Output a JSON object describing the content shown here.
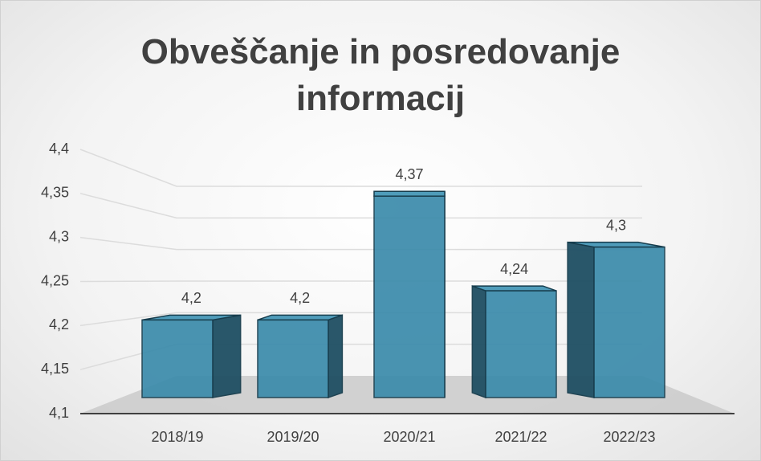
{
  "chart_data": {
    "type": "bar3d",
    "title": "Obveščanje in posredovanje informacij",
    "categories": [
      "2018/19",
      "2019/20",
      "2020/21",
      "2021/22",
      "2022/23"
    ],
    "values": [
      4.2,
      4.2,
      4.37,
      4.24,
      4.3
    ],
    "value_labels": [
      "4,2",
      "4,2",
      "4,37",
      "4,24",
      "4,3"
    ],
    "color": "#3b8bab",
    "ylim": [
      4.1,
      4.4
    ],
    "yticks": [
      {
        "value": 4.1,
        "label": "4,1"
      },
      {
        "value": 4.15,
        "label": "4,15"
      },
      {
        "value": 4.2,
        "label": "4,2"
      },
      {
        "value": 4.25,
        "label": "4,25"
      },
      {
        "value": 4.3,
        "label": "4,3"
      },
      {
        "value": 4.35,
        "label": "4,35"
      },
      {
        "value": 4.4,
        "label": "4,4"
      }
    ],
    "grid": true
  }
}
